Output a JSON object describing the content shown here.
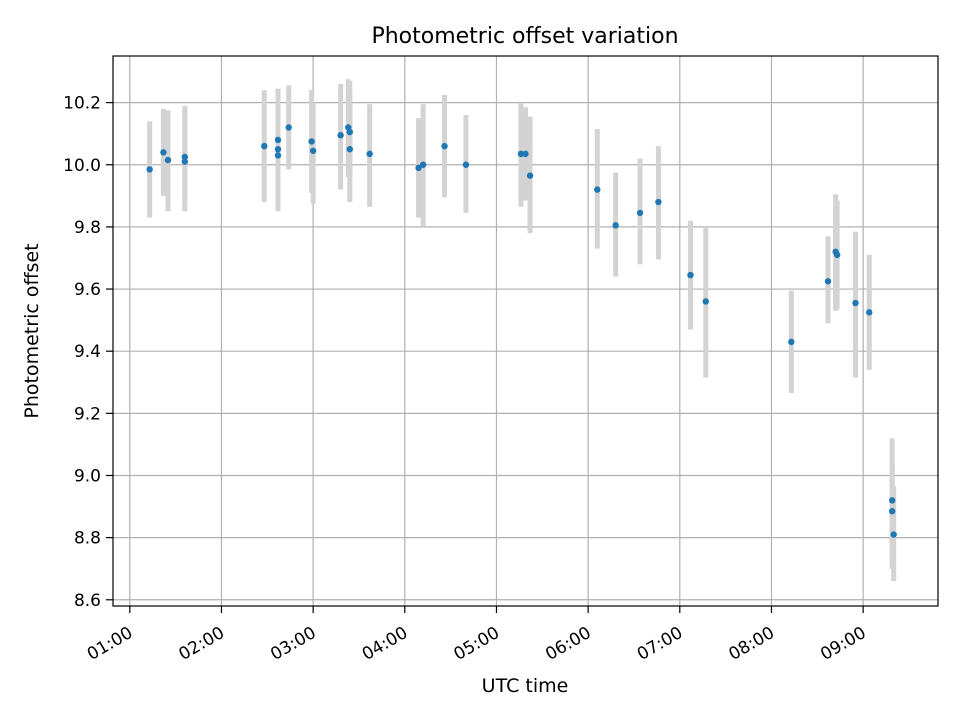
{
  "chart_data": {
    "type": "scatter",
    "title": "Photometric offset variation",
    "xlabel": "UTC time",
    "ylabel": "Photometric offset",
    "x_ticks": [
      "01:00",
      "02:00",
      "03:00",
      "04:00",
      "05:00",
      "06:00",
      "07:00",
      "08:00",
      "09:00"
    ],
    "y_ticks": [
      "8.6",
      "8.8",
      "9.0",
      "9.2",
      "9.4",
      "9.6",
      "9.8",
      "10.0",
      "10.2"
    ],
    "xlim": [
      "00:49",
      "09:49"
    ],
    "ylim": [
      8.58,
      10.35
    ],
    "grid": true,
    "point_color": "#1f77b4",
    "errorbar_color": "#d3d3d3",
    "points": [
      {
        "t": "01:13",
        "y": 9.985,
        "lo": 9.83,
        "hi": 10.14
      },
      {
        "t": "01:22",
        "y": 10.04,
        "lo": 9.9,
        "hi": 10.18
      },
      {
        "t": "01:25",
        "y": 10.015,
        "lo": 9.85,
        "hi": 10.175
      },
      {
        "t": "01:36",
        "y": 10.025,
        "lo": 9.85,
        "hi": 10.19
      },
      {
        "t": "01:36",
        "y": 10.01,
        "lo": 9.88,
        "hi": 10.18
      },
      {
        "t": "02:28",
        "y": 10.06,
        "lo": 9.88,
        "hi": 10.24
      },
      {
        "t": "02:37",
        "y": 10.08,
        "lo": 9.91,
        "hi": 10.245
      },
      {
        "t": "02:37",
        "y": 10.05,
        "lo": 9.89,
        "hi": 10.22
      },
      {
        "t": "02:37",
        "y": 10.03,
        "lo": 9.85,
        "hi": 10.21
      },
      {
        "t": "02:44",
        "y": 10.12,
        "lo": 9.985,
        "hi": 10.255
      },
      {
        "t": "02:59",
        "y": 10.075,
        "lo": 9.91,
        "hi": 10.24
      },
      {
        "t": "03:00",
        "y": 10.045,
        "lo": 9.875,
        "hi": 10.2
      },
      {
        "t": "03:18",
        "y": 10.095,
        "lo": 9.92,
        "hi": 10.26
      },
      {
        "t": "03:23",
        "y": 10.12,
        "lo": 9.96,
        "hi": 10.275
      },
      {
        "t": "03:24",
        "y": 10.105,
        "lo": 9.95,
        "hi": 10.27
      },
      {
        "t": "03:24",
        "y": 10.05,
        "lo": 9.88,
        "hi": 10.23
      },
      {
        "t": "03:37",
        "y": 10.035,
        "lo": 9.865,
        "hi": 10.195
      },
      {
        "t": "04:09",
        "y": 9.99,
        "lo": 9.83,
        "hi": 10.15
      },
      {
        "t": "04:12",
        "y": 10.0,
        "lo": 9.8,
        "hi": 10.195
      },
      {
        "t": "04:26",
        "y": 10.06,
        "lo": 9.895,
        "hi": 10.225
      },
      {
        "t": "04:40",
        "y": 10.0,
        "lo": 9.845,
        "hi": 10.16
      },
      {
        "t": "05:16",
        "y": 10.035,
        "lo": 9.865,
        "hi": 10.2
      },
      {
        "t": "05:19",
        "y": 10.035,
        "lo": 9.885,
        "hi": 10.185
      },
      {
        "t": "05:22",
        "y": 9.965,
        "lo": 9.78,
        "hi": 10.155
      },
      {
        "t": "06:06",
        "y": 9.92,
        "lo": 9.73,
        "hi": 10.115
      },
      {
        "t": "06:18",
        "y": 9.805,
        "lo": 9.64,
        "hi": 9.975
      },
      {
        "t": "06:34",
        "y": 9.845,
        "lo": 9.68,
        "hi": 10.02
      },
      {
        "t": "06:46",
        "y": 9.88,
        "lo": 9.695,
        "hi": 10.06
      },
      {
        "t": "07:07",
        "y": 9.645,
        "lo": 9.47,
        "hi": 9.82
      },
      {
        "t": "07:17",
        "y": 9.56,
        "lo": 9.315,
        "hi": 9.8
      },
      {
        "t": "08:13",
        "y": 9.43,
        "lo": 9.265,
        "hi": 9.595
      },
      {
        "t": "08:37",
        "y": 9.625,
        "lo": 9.49,
        "hi": 9.77
      },
      {
        "t": "08:42",
        "y": 9.72,
        "lo": 9.53,
        "hi": 9.905
      },
      {
        "t": "08:43",
        "y": 9.71,
        "lo": 9.535,
        "hi": 9.885
      },
      {
        "t": "08:55",
        "y": 9.555,
        "lo": 9.315,
        "hi": 9.785
      },
      {
        "t": "09:04",
        "y": 9.525,
        "lo": 9.34,
        "hi": 9.71
      },
      {
        "t": "09:19",
        "y": 8.92,
        "lo": 8.7,
        "hi": 9.12
      },
      {
        "t": "09:19",
        "y": 8.885,
        "lo": 8.73,
        "hi": 9.04
      },
      {
        "t": "09:20",
        "y": 8.81,
        "lo": 8.66,
        "hi": 8.965
      }
    ]
  }
}
